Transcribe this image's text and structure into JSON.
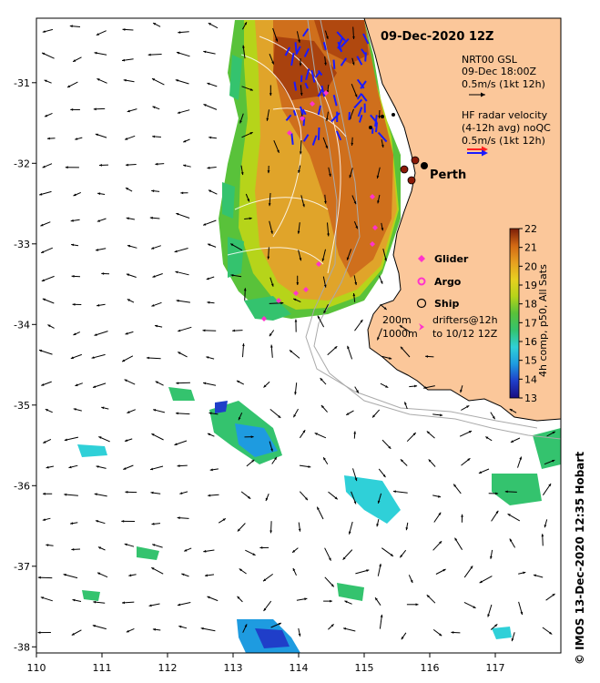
{
  "map": {
    "title": "09-Dec-2020 12Z",
    "lon_range": [
      110,
      118
    ],
    "lat_range": [
      -38,
      -30.2
    ],
    "x_ticks": [
      "110",
      "111",
      "112",
      "113",
      "114",
      "115",
      "116",
      "117"
    ],
    "y_ticks": [
      "-31",
      "-32",
      "-33",
      "-34",
      "-35",
      "-36",
      "-37",
      "-38"
    ],
    "city_label": "Perth",
    "colors": {
      "land": "#fbc79a",
      "coast": "#000000",
      "hf_radar": "#1a1aff",
      "hf_radar_accent": "#ff2020",
      "glider": "#ff33cc",
      "ship": "#000000",
      "drifter": "#ff33cc",
      "bathymetry": "#aaaaaa"
    }
  },
  "legend": {
    "model": {
      "title": "NRT00 GSL",
      "time": "09-Dec 18:00Z",
      "scale": "0.5m/s (1kt 12h)"
    },
    "radar": {
      "line1": "HF radar velocity",
      "line2": "(4-12h avg) noQC",
      "scale": "0.5m/s (1kt 12h)"
    },
    "markers": [
      {
        "label": "Glider",
        "icon": "diamond-icon"
      },
      {
        "label": "Argo",
        "icon": "ring-icon"
      },
      {
        "label": "Ship",
        "icon": "circle-icon"
      }
    ],
    "depths": [
      "200m",
      "1000m"
    ],
    "drifters": {
      "line1": "drifters@12h",
      "line2": "to 10/12 12Z"
    }
  },
  "colorbar": {
    "ticks": [
      "13",
      "14",
      "15",
      "16",
      "17",
      "18",
      "19",
      "20",
      "21",
      "22"
    ],
    "label": "4h comp, p50, All Sats",
    "colors": [
      "#1a0d80",
      "#1f3ec9",
      "#1e9be0",
      "#2fd0d8",
      "#34c36e",
      "#59c23a",
      "#b6d41a",
      "#e7a020",
      "#d26914",
      "#a9370c",
      "#7a1e08"
    ]
  },
  "credit": "© IMOS 13-Dec-2020 12:35 Hobart"
}
